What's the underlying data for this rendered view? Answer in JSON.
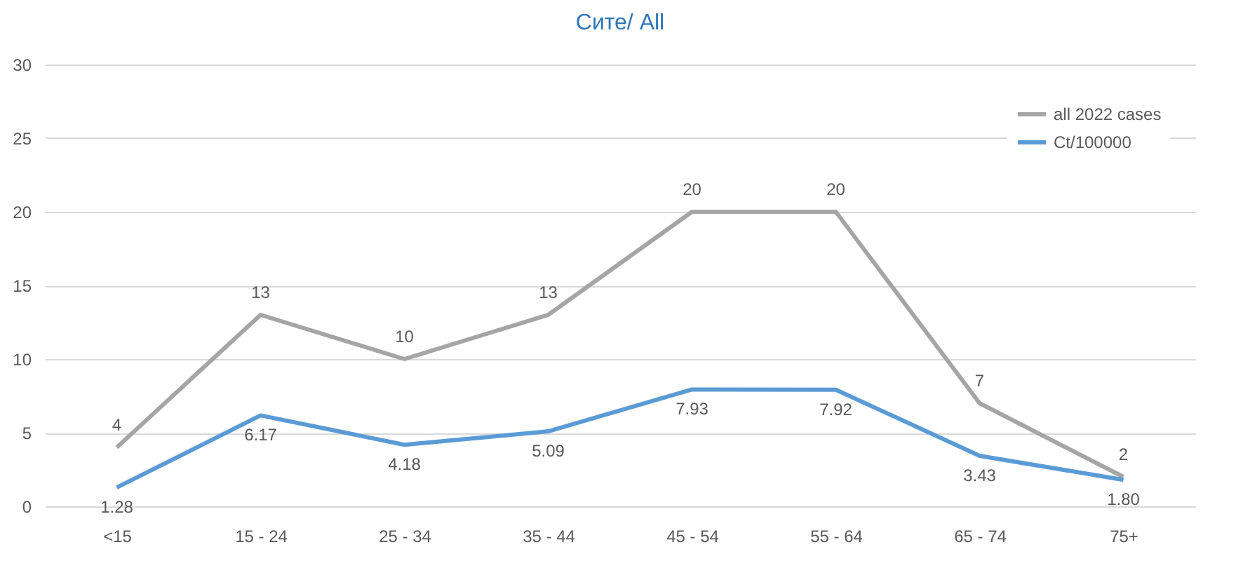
{
  "chart_data": {
    "type": "line",
    "title": "Сите/ All",
    "categories": [
      "<15",
      "15 - 24",
      "25 - 34",
      "35 - 44",
      "45 - 54",
      "55 - 64",
      "65 - 74",
      "75+"
    ],
    "series": [
      {
        "name": "all 2022 cases",
        "color": "#a5a5a5",
        "values": [
          4,
          13,
          10,
          13,
          20,
          20,
          7,
          2
        ],
        "value_labels": [
          "4",
          "13",
          "10",
          "13",
          "20",
          "20",
          "7",
          "2"
        ]
      },
      {
        "name": "Ct/100000",
        "color": "#5b9bd5",
        "values": [
          1.28,
          6.17,
          4.18,
          5.09,
          7.93,
          7.92,
          3.43,
          1.8
        ],
        "value_labels": [
          "1.28",
          "6.17",
          "4.18",
          "5.09",
          "7.93",
          "7.92",
          "3.43",
          "1.80"
        ]
      }
    ],
    "ylim": [
      0,
      30
    ],
    "yticks": [
      0,
      5,
      10,
      15,
      20,
      25,
      30
    ],
    "grid": "y",
    "legend": "top right",
    "marker": "none",
    "line_style": "solid"
  }
}
